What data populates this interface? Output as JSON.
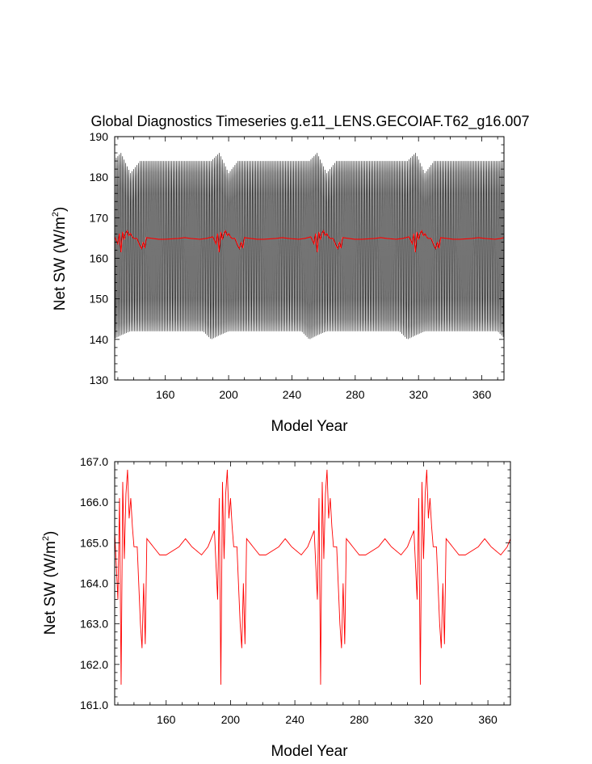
{
  "chart_data": [
    {
      "type": "line",
      "title": "Global Diagnostics Timeseries g.e11_LENS.GECOIAF.T62_g16.007",
      "xlabel": "Model Year",
      "ylabel_main": "Net SW (W/m",
      "ylabel_sup": "2",
      "ylabel_close": ")",
      "xlim": [
        128,
        374
      ],
      "ylim": [
        130,
        190
      ],
      "xticks": [
        160,
        200,
        240,
        280,
        320,
        360
      ],
      "yticks": [
        130,
        140,
        150,
        160,
        170,
        180,
        190
      ],
      "ytick_decimals": 0,
      "grid": false,
      "series": [
        {
          "color": "#000000",
          "kind": "monthly",
          "cycle_years": 62,
          "cycle_start": 110,
          "cycle_max": [
            [
              0,
              184
            ],
            [
              10,
              184
            ],
            [
              17,
              184
            ],
            [
              22,
              186
            ],
            [
              28,
              181
            ],
            [
              34,
              184
            ],
            [
              62,
              184
            ]
          ],
          "cycle_min": [
            [
              0,
              142
            ],
            [
              12,
              142
            ],
            [
              17,
              140
            ],
            [
              22,
              141
            ],
            [
              28,
              142
            ],
            [
              62,
              142
            ]
          ]
        },
        {
          "color": "#ff0000",
          "kind": "annual",
          "cycle_years": 62,
          "cycle_start": 110,
          "cycle_values": [
            [
              0,
              165.1
            ],
            [
              4,
              164.9
            ],
            [
              10,
              164.7
            ],
            [
              14,
              164.9
            ],
            [
              16,
              165.1
            ],
            [
              18,
              165.3
            ],
            [
              20,
              163.6
            ],
            [
              21,
              166.1
            ],
            [
              22,
              161.5
            ],
            [
              23,
              166.5
            ],
            [
              24,
              164.6
            ],
            [
              25,
              166.2
            ],
            [
              26,
              166.8
            ],
            [
              27,
              165.6
            ],
            [
              28,
              166.1
            ],
            [
              29,
              165.4
            ],
            [
              30,
              164.9
            ],
            [
              32,
              164.9
            ],
            [
              34,
              163.0
            ],
            [
              35,
              162.4
            ],
            [
              36,
              164.0
            ],
            [
              37,
              162.5
            ],
            [
              38,
              165.1
            ],
            [
              42,
              164.9
            ],
            [
              46,
              164.7
            ],
            [
              50,
              164.7
            ],
            [
              54,
              164.8
            ],
            [
              58,
              164.9
            ],
            [
              62,
              165.1
            ]
          ]
        }
      ]
    },
    {
      "type": "line",
      "title": "",
      "xlabel": "Model Year",
      "ylabel_main": "Net SW (W/m",
      "ylabel_sup": "2",
      "ylabel_close": ")",
      "xlim": [
        128,
        374
      ],
      "ylim": [
        161,
        167
      ],
      "xticks": [
        160,
        200,
        240,
        280,
        320,
        360
      ],
      "yticks": [
        161,
        162,
        163,
        164,
        165,
        166,
        167
      ],
      "ytick_decimals": 1,
      "grid": false,
      "series": [
        {
          "color": "#ff0000",
          "kind": "annual",
          "cycle_years": 62,
          "cycle_start": 110,
          "cycle_values": [
            [
              0,
              165.1
            ],
            [
              4,
              164.9
            ],
            [
              10,
              164.7
            ],
            [
              14,
              164.9
            ],
            [
              16,
              165.1
            ],
            [
              18,
              165.3
            ],
            [
              20,
              163.6
            ],
            [
              21,
              166.1
            ],
            [
              22,
              161.5
            ],
            [
              23,
              166.5
            ],
            [
              24,
              164.6
            ],
            [
              25,
              166.2
            ],
            [
              26,
              166.8
            ],
            [
              27,
              165.6
            ],
            [
              28,
              166.1
            ],
            [
              29,
              165.4
            ],
            [
              30,
              164.9
            ],
            [
              32,
              164.9
            ],
            [
              34,
              163.0
            ],
            [
              35,
              162.4
            ],
            [
              36,
              164.0
            ],
            [
              37,
              162.5
            ],
            [
              38,
              165.1
            ],
            [
              42,
              164.9
            ],
            [
              46,
              164.7
            ],
            [
              50,
              164.7
            ],
            [
              54,
              164.8
            ],
            [
              58,
              164.9
            ],
            [
              62,
              165.1
            ]
          ]
        }
      ]
    }
  ]
}
